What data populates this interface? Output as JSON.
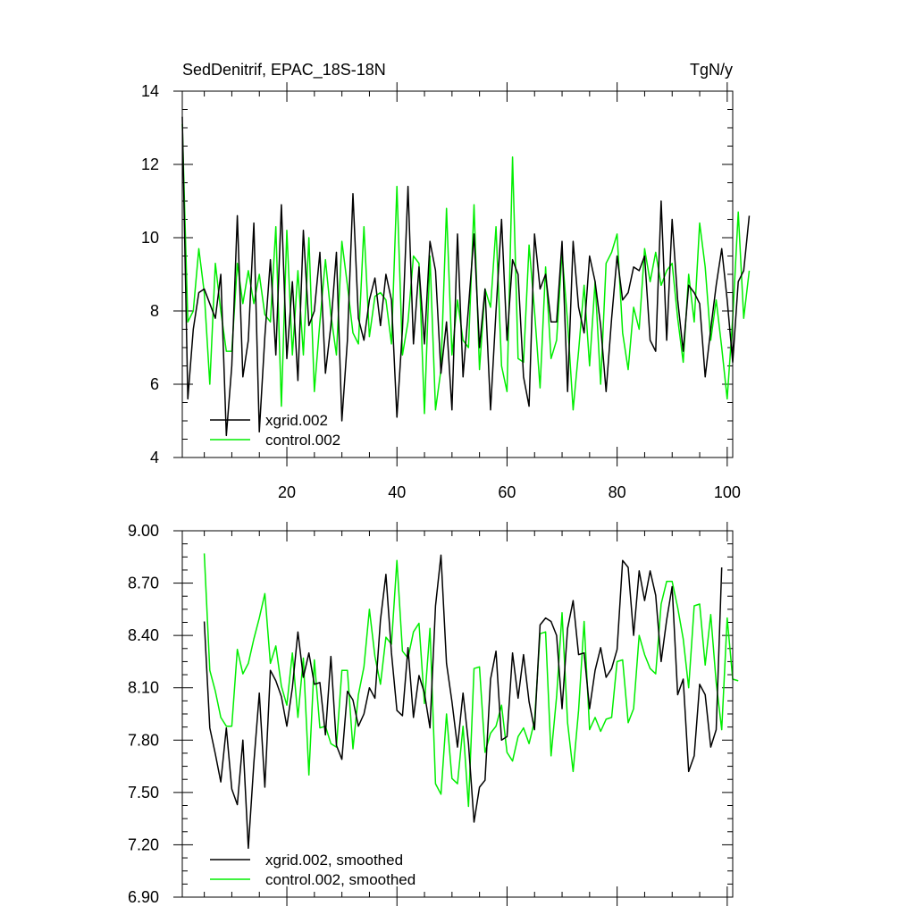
{
  "chart_data": [
    {
      "type": "line",
      "title_left": "SedDenitrif, EPAC_18S-18N",
      "title_right": "TgN/y",
      "xlim": [
        1,
        101
      ],
      "ylim": [
        4,
        14
      ],
      "x_ticks": [
        20,
        40,
        60,
        80,
        100
      ],
      "y_ticks": [
        4,
        6,
        8,
        10,
        12,
        14
      ],
      "x_tick_labels": [
        "20",
        "40",
        "60",
        "80",
        "100"
      ],
      "y_tick_labels": [
        "4",
        "6",
        "8",
        "10",
        "12",
        "14"
      ],
      "x_start": 1,
      "legend_position": "bottom-left",
      "series": [
        {
          "name": "xgrid.002",
          "color": "#000000",
          "values": [
            13.3,
            5.6,
            7.5,
            8.5,
            8.6,
            8.2,
            7.8,
            9.0,
            4.6,
            6.5,
            10.6,
            6.2,
            7.2,
            10.4,
            4.7,
            7.3,
            9.4,
            6.8,
            10.9,
            6.7,
            8.8,
            6.1,
            10.2,
            7.6,
            8.0,
            9.6,
            6.3,
            7.6,
            9.6,
            5.0,
            7.2,
            11.2,
            7.8,
            7.2,
            8.3,
            8.9,
            7.6,
            9.0,
            8.3,
            5.1,
            7.5,
            11.4,
            7.1,
            9.2,
            7.1,
            9.9,
            9.1,
            6.3,
            7.7,
            5.3,
            10.1,
            6.2,
            8.1,
            10.1,
            7.0,
            8.6,
            5.3,
            8.0,
            10.5,
            7.2,
            9.4,
            9.0,
            6.2,
            5.4,
            10.1,
            8.6,
            9.0,
            7.7,
            7.7,
            9.9,
            5.8,
            9.9,
            8.1,
            7.4,
            9.5,
            8.8,
            7.6,
            5.8,
            7.8,
            9.5,
            8.3,
            8.5,
            9.2,
            9.1,
            9.5,
            7.2,
            6.9,
            11.0,
            7.2,
            10.5,
            8.3,
            6.9,
            8.7,
            8.5,
            8.2,
            6.2,
            7.5,
            8.7,
            9.7,
            8.3,
            6.6,
            8.8,
            9.1,
            10.6
          ]
        },
        {
          "name": "control.002",
          "color": "#00ee00",
          "values": [
            13.1,
            7.7,
            8.0,
            9.7,
            8.5,
            6.0,
            9.3,
            8.0,
            6.9,
            6.9,
            9.3,
            8.2,
            9.1,
            8.2,
            9.0,
            7.9,
            7.7,
            10.3,
            5.4,
            10.2,
            6.8,
            9.1,
            6.8,
            10.0,
            5.8,
            7.7,
            9.4,
            7.9,
            6.8,
            9.9,
            8.7,
            7.4,
            7.1,
            10.3,
            7.3,
            8.4,
            8.5,
            8.3,
            7.1,
            11.4,
            6.8,
            7.7,
            9.5,
            9.3,
            5.2,
            9.5,
            5.3,
            6.4,
            10.8,
            6.8,
            8.3,
            7.2,
            7.0,
            10.9,
            6.4,
            8.6,
            8.1,
            10.3,
            6.5,
            5.8,
            12.2,
            6.7,
            6.6,
            9.8,
            8.0,
            5.9,
            9.2,
            6.7,
            7.2,
            9.6,
            7.7,
            5.3,
            6.9,
            8.7,
            6.5,
            8.8,
            6.0,
            9.3,
            9.6,
            10.1,
            7.4,
            6.4,
            8.1,
            7.5,
            9.7,
            8.8,
            9.6,
            8.7,
            9.1,
            9.3,
            7.8,
            6.6,
            9.0,
            7.7,
            10.4,
            9.2,
            7.2,
            8.3,
            7.0,
            5.6,
            7.8,
            10.7,
            7.8,
            9.1
          ]
        }
      ]
    },
    {
      "type": "line",
      "title_left": "",
      "title_right": "",
      "xlim": [
        1,
        101
      ],
      "ylim": [
        6.9,
        9.0
      ],
      "x_ticks": [
        20,
        40,
        60,
        80,
        100
      ],
      "y_ticks": [
        6.9,
        7.2,
        7.5,
        7.8,
        8.1,
        8.4,
        8.7,
        9.0
      ],
      "x_tick_labels": [],
      "y_tick_labels": [
        "6.90",
        "7.20",
        "7.50",
        "7.80",
        "8.10",
        "8.40",
        "8.70",
        "9.00"
      ],
      "x_start": 5,
      "legend_position": "bottom-left",
      "series": [
        {
          "name": "xgrid.002, smoothed",
          "color": "#000000",
          "values": [
            8.48,
            7.87,
            7.72,
            7.56,
            7.87,
            7.52,
            7.43,
            7.8,
            7.18,
            7.67,
            8.07,
            7.53,
            8.2,
            8.14,
            8.05,
            7.88,
            8.1,
            8.42,
            8.16,
            8.3,
            8.12,
            8.13,
            7.83,
            8.28,
            7.77,
            7.69,
            8.08,
            8.03,
            7.88,
            7.95,
            8.1,
            8.04,
            8.49,
            8.75,
            8.3,
            7.97,
            7.94,
            8.33,
            7.93,
            8.17,
            8.07,
            7.87,
            8.57,
            8.86,
            8.24,
            8.02,
            7.76,
            8.07,
            7.78,
            7.33,
            7.53,
            7.57,
            8.15,
            8.31,
            7.8,
            7.82,
            8.3,
            8.04,
            8.29,
            8.02,
            7.86,
            8.46,
            8.5,
            8.48,
            8.4,
            7.98,
            8.44,
            8.6,
            8.29,
            8.3,
            7.98,
            8.2,
            8.33,
            8.16,
            8.21,
            8.32,
            8.83,
            8.79,
            8.4,
            8.77,
            8.6,
            8.77,
            8.63,
            8.25,
            8.49,
            8.68,
            8.06,
            8.15,
            7.62,
            7.71,
            8.12,
            8.06,
            7.76,
            7.86,
            8.79
          ]
        },
        {
          "name": "control.002, smoothed",
          "color": "#00ee00",
          "values": [
            8.87,
            8.2,
            8.08,
            7.93,
            7.88,
            7.88,
            8.32,
            8.18,
            8.24,
            8.38,
            8.5,
            8.64,
            8.24,
            8.34,
            8.11,
            8.0,
            8.3,
            7.93,
            8.27,
            7.6,
            8.26,
            7.87,
            7.88,
            7.78,
            7.76,
            8.2,
            8.2,
            7.75,
            8.06,
            8.22,
            8.55,
            8.28,
            8.12,
            8.39,
            8.35,
            8.83,
            8.31,
            8.27,
            8.42,
            8.47,
            8.01,
            8.44,
            7.55,
            7.49,
            7.95,
            7.58,
            7.55,
            7.88,
            7.42,
            8.21,
            8.22,
            7.73,
            7.84,
            7.88,
            8.0,
            7.73,
            7.68,
            7.82,
            7.87,
            7.78,
            7.91,
            8.41,
            8.42,
            7.71,
            8.05,
            8.53,
            7.9,
            7.62,
            7.97,
            8.48,
            7.86,
            7.93,
            7.85,
            7.92,
            7.93,
            8.25,
            8.26,
            7.9,
            7.98,
            8.4,
            8.29,
            8.21,
            8.18,
            8.58,
            8.71,
            8.71,
            8.56,
            8.38,
            8.1,
            8.57,
            8.58,
            8.23,
            8.52,
            8.13,
            7.86,
            8.5,
            8.15,
            8.14
          ]
        }
      ]
    }
  ]
}
